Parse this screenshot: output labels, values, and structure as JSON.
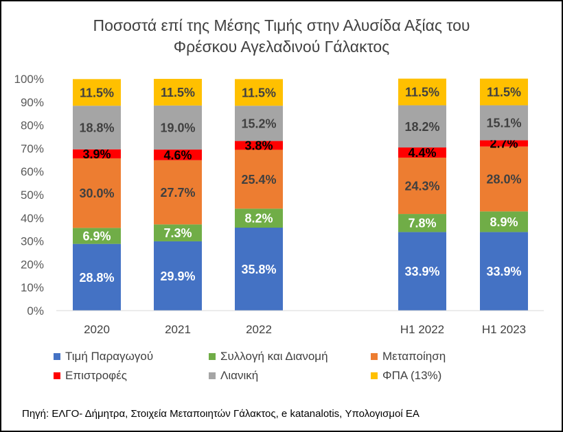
{
  "chart_data": {
    "type": "bar",
    "stacked": true,
    "title_lines": [
      "Ποσοστά επί της Μέσης Τιμής στην Αλυσίδα Αξίας του",
      "Φρέσκου Αγελαδινού Γάλακτος"
    ],
    "categories": [
      "2020",
      "2021",
      "2022",
      "H1 2022",
      "H1 2023"
    ],
    "y_ticks": [
      "0%",
      "10%",
      "20%",
      "30%",
      "40%",
      "50%",
      "60%",
      "70%",
      "80%",
      "90%",
      "100%"
    ],
    "ylim": [
      0,
      100
    ],
    "grid": false,
    "legend_position": "bottom",
    "series": [
      {
        "name": "Τιμή Παραγωγού",
        "color": "#4472C4",
        "label_color": "#FFFFFF",
        "values": [
          28.8,
          29.9,
          35.8,
          33.9,
          33.9
        ],
        "labels": [
          "28.8%",
          "29.9%",
          "35.8%",
          "33.9%",
          "33.9%"
        ]
      },
      {
        "name": "Συλλογή και Διανομή",
        "color": "#70AD47",
        "label_color": "#FFFFFF",
        "values": [
          6.9,
          7.3,
          8.2,
          7.8,
          8.9
        ],
        "labels": [
          "6.9%",
          "7.3%",
          "8.2%",
          "7.8%",
          "8.9%"
        ]
      },
      {
        "name": "Μεταποίηση",
        "color": "#ED7D31",
        "label_color": "#404040",
        "values": [
          30.0,
          27.7,
          25.4,
          24.3,
          28.0
        ],
        "labels": [
          "30.0%",
          "27.7%",
          "25.4%",
          "24.3%",
          "28.0%"
        ]
      },
      {
        "name": "Επιστροφές",
        "color": "#FF0000",
        "label_color": "#000000",
        "values": [
          3.9,
          4.6,
          3.8,
          4.4,
          2.7
        ],
        "labels": [
          "3.9%",
          "4.6%",
          "3.8%",
          "4.4%",
          "2.7%"
        ]
      },
      {
        "name": "Λιανική",
        "color": "#A5A5A5",
        "label_color": "#404040",
        "values": [
          18.8,
          19.0,
          15.2,
          18.2,
          15.1
        ],
        "labels": [
          "18.8%",
          "19.0%",
          "15.2%",
          "18.2%",
          "15.1%"
        ]
      },
      {
        "name": "ΦΠΑ (13%)",
        "color": "#FFC000",
        "label_color": "#404040",
        "values": [
          11.5,
          11.5,
          11.5,
          11.5,
          11.5
        ],
        "labels": [
          "11.5%",
          "11.5%",
          "11.5%",
          "11.5%",
          "11.5%"
        ]
      }
    ]
  },
  "source": "Πηγή: ΕΛΓΟ- Δήμητρα, Στοιχεία Μεταποιητών Γάλακτος, e katanalotis, Υπολογισμοί ΕΑ"
}
